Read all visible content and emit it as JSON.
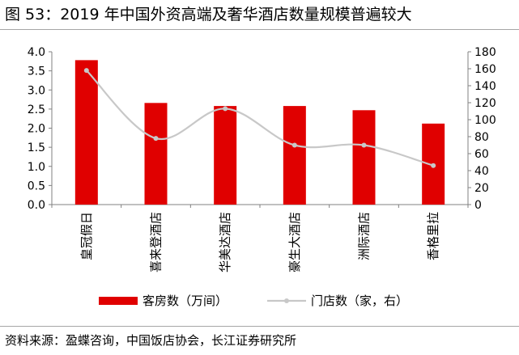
{
  "figure": {
    "title": "图 53：2019 年中国外资高端及奢华酒店数量规模普遍较大",
    "source": "资料来源：盈蝶咨询，中国饭店协会，长江证券研究所"
  },
  "chart_data": {
    "type": "bar",
    "categories": [
      "皇冠假日",
      "喜来登酒店",
      "华美达酒店",
      "豪生大酒店",
      "洲际酒店",
      "香格里拉"
    ],
    "series": [
      {
        "name": "客房数（万间）",
        "type": "bar",
        "axis": "left",
        "values": [
          3.78,
          2.66,
          2.58,
          2.58,
          2.47,
          2.12
        ]
      },
      {
        "name": "门店数（家，右）",
        "type": "line",
        "axis": "right",
        "values": [
          158,
          78,
          113,
          70,
          70,
          46
        ]
      }
    ],
    "y_left": {
      "min": 0,
      "max": 4.0,
      "step": 0.5,
      "decimals": 1,
      "ticks": [
        "0.0",
        "0.5",
        "1.0",
        "1.5",
        "2.0",
        "2.5",
        "3.0",
        "3.5",
        "4.0"
      ]
    },
    "y_right": {
      "min": 0,
      "max": 180,
      "step": 20,
      "ticks": [
        "0",
        "20",
        "40",
        "60",
        "80",
        "100",
        "120",
        "140",
        "160",
        "180"
      ]
    },
    "colors": {
      "bar": "#e00000",
      "line": "#c8c8c8",
      "axis": "#808080"
    },
    "legend": {
      "position": "bottom",
      "bar_label": "客房数（万间）",
      "line_label": "门店数（家，右）"
    }
  }
}
